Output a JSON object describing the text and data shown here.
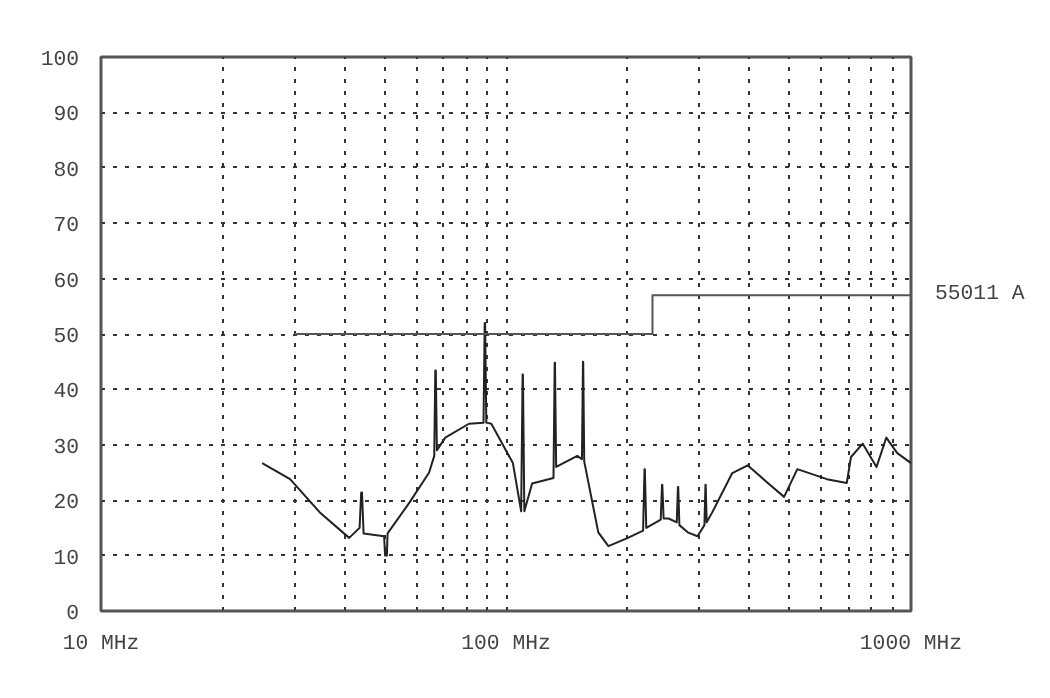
{
  "chart_data": {
    "type": "line",
    "xlim": [
      10,
      1000
    ],
    "ylim": [
      0,
      100
    ],
    "xticks": [
      {
        "value": 10,
        "label": "10 MHz"
      },
      {
        "value": 20,
        "label": null
      },
      {
        "value": 30,
        "label": null
      },
      {
        "value": 40,
        "label": null
      },
      {
        "value": 50,
        "label": null
      },
      {
        "value": 60,
        "label": null
      },
      {
        "value": 70,
        "label": null
      },
      {
        "value": 80,
        "label": null
      },
      {
        "value": 90,
        "label": null
      },
      {
        "value": 100,
        "label": "100 MHz"
      },
      {
        "value": 200,
        "label": null
      },
      {
        "value": 300,
        "label": null
      },
      {
        "value": 400,
        "label": null
      },
      {
        "value": 500,
        "label": null
      },
      {
        "value": 600,
        "label": null
      },
      {
        "value": 700,
        "label": null
      },
      {
        "value": 800,
        "label": null
      },
      {
        "value": 900,
        "label": null
      },
      {
        "value": 1000,
        "label": "1000 MHz"
      }
    ],
    "yticks": [
      0,
      10,
      20,
      30,
      40,
      50,
      60,
      70,
      80,
      90,
      100
    ],
    "log": "x",
    "grid": true,
    "line_style": "solid",
    "series": [
      {
        "color": "#222222",
        "x": [
          25,
          29.3,
          34.7,
          41,
          43.5,
          43.9,
          44.1,
          44.5,
          50,
          50.3,
          50.8,
          51,
          57.8,
          64.6,
          66.5,
          66.9,
          67.1,
          67.5,
          70.8,
          81,
          88,
          88.6,
          88.8,
          89.4,
          92,
          104,
          109,
          109.9,
          110.1,
          111,
          116,
          131,
          131.9,
          132.1,
          133,
          150,
          154,
          154.9,
          155.1,
          156,
          169,
          179,
          200,
          218,
          219.8,
          220.2,
          222,
          241,
          242.8,
          243.2,
          245,
          252,
          264,
          265.8,
          266.2,
          268,
          281,
          297,
          309,
          310.8,
          311.2,
          313,
          323,
          362,
          395,
          443,
          486,
          524,
          620,
          694,
          711,
          760,
          822,
          869,
          925,
          1000
        ],
        "values": [
          26.7,
          23.8,
          17.8,
          13.2,
          15,
          21.4,
          21.4,
          14,
          13.5,
          10,
          10,
          14,
          19.6,
          25,
          28,
          43.4,
          43.4,
          29,
          31.3,
          33.8,
          34,
          52,
          52,
          34,
          33.8,
          26.7,
          18,
          42.7,
          42.7,
          18,
          23,
          24,
          44.8,
          44.8,
          26,
          28,
          27.4,
          45,
          45,
          27,
          14.2,
          11.7,
          13.2,
          14.5,
          25.6,
          25.6,
          15,
          16.5,
          22.8,
          22.8,
          16.7,
          16.7,
          16,
          22.4,
          22.4,
          15.5,
          14.2,
          13.5,
          15.5,
          22.8,
          22.8,
          16,
          17.8,
          24.9,
          26.3,
          23.1,
          20.6,
          25.6,
          23.8,
          23.1,
          27.8,
          30.2,
          26,
          31.3,
          28.5,
          26.7
        ]
      },
      {
        "name": "55011 A",
        "color": "#555555",
        "x": [
          30,
          230,
          230,
          1000
        ],
        "values": [
          50,
          50,
          57,
          57
        ]
      }
    ]
  }
}
